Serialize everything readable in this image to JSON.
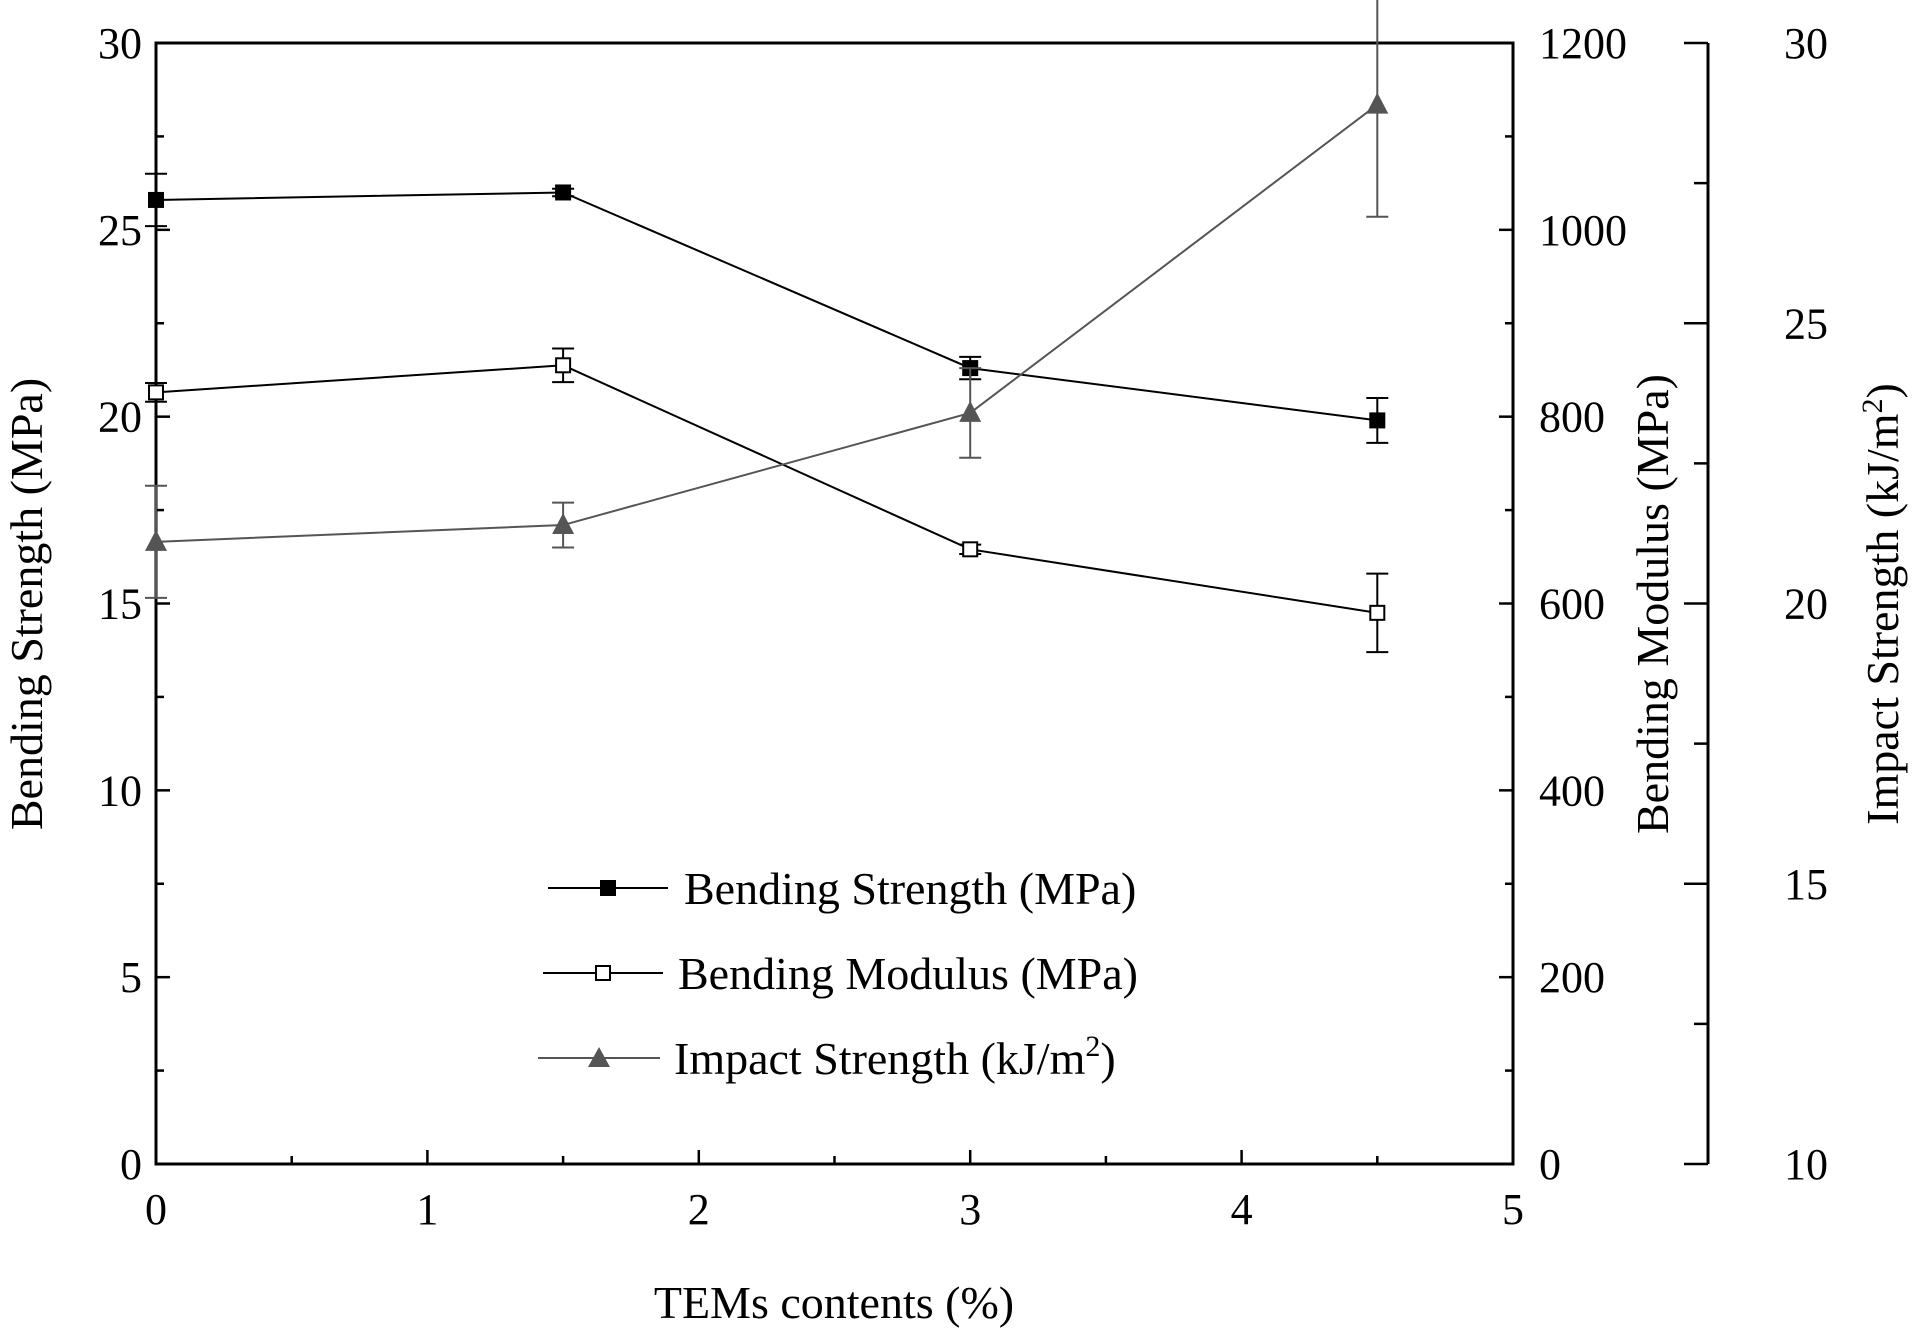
{
  "chart_data": {
    "type": "line",
    "xlabel": "TEMs contents (%)",
    "xlim": [
      0,
      5
    ],
    "xticks": [
      "0",
      "1",
      "2",
      "3",
      "4",
      "5"
    ],
    "x": [
      0,
      1.5,
      3,
      4.5
    ],
    "axes": {
      "left": {
        "label": "Bending Strength (MPa)",
        "lim": [
          0,
          30
        ],
        "ticks": [
          "0",
          "5",
          "10",
          "15",
          "20",
          "25",
          "30"
        ]
      },
      "right1": {
        "label": "Bending Modulus (MPa)",
        "lim": [
          0,
          1200
        ],
        "ticks": [
          "0",
          "200",
          "400",
          "600",
          "800",
          "1000",
          "1200"
        ]
      },
      "right2": {
        "label_main": "Impact Strength (kJ/m",
        "label_sup": "2",
        "label_end": ")",
        "lim": [
          10,
          30
        ],
        "ticks": [
          "10",
          "15",
          "20",
          "25",
          "30"
        ]
      }
    },
    "series": [
      {
        "name": "Bending Strength (MPa)",
        "axis": "left",
        "marker": "filled-square",
        "color": "#000000",
        "values": [
          25.8,
          26.0,
          21.3,
          19.9
        ],
        "errors": [
          0.7,
          0.1,
          0.3,
          0.6
        ]
      },
      {
        "name": "Bending Modulus (MPa)",
        "axis": "right1",
        "marker": "open-square",
        "color": "#000000",
        "values": [
          826,
          855,
          658,
          590
        ],
        "errors": [
          10,
          18,
          5,
          42
        ]
      },
      {
        "name": "Impact Strength (kJ/m2)",
        "axis": "right2",
        "marker": "triangle",
        "color": "#555555",
        "values": [
          21.1,
          21.4,
          23.4,
          28.9
        ],
        "errors": [
          1.0,
          0.4,
          0.8,
          2.0
        ]
      }
    ],
    "legend": {
      "position": "center-bottom",
      "items": [
        {
          "label": "Bending Strength (MPa)"
        },
        {
          "label": "Bending Modulus (MPa)"
        },
        {
          "label_main": "Impact Strength (kJ/m",
          "label_sup": "2",
          "label_end": ")"
        }
      ]
    }
  }
}
